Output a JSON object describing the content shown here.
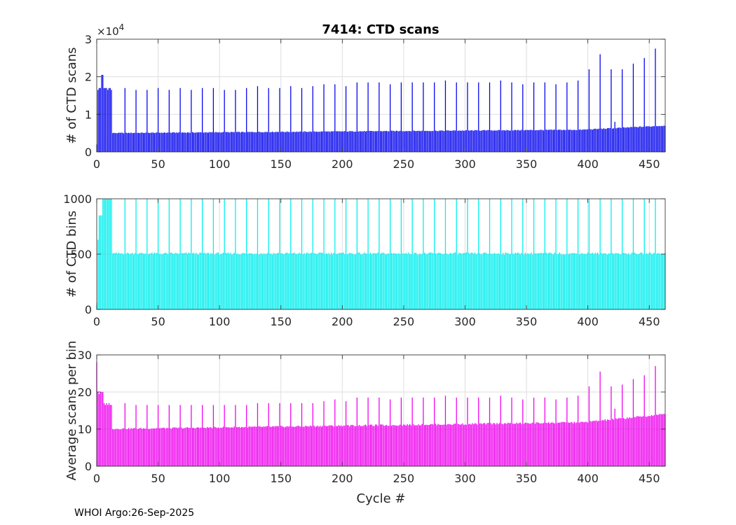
{
  "footer": "WHOI Argo:26-Sep-2025",
  "colors": {
    "scans": "#0000ee",
    "bins": "#00eeee",
    "average": "#ee00ee",
    "axis": "#262626",
    "grid": "#dedede"
  },
  "chart_data": [
    {
      "type": "bar",
      "title": "7414: CTD scans",
      "xlabel": "",
      "ylabel": "# of CTD scans",
      "scale_label": "×10",
      "scale_exponent": "4",
      "xlim": [
        0,
        463
      ],
      "ylim": [
        0,
        30000
      ],
      "xticks": [
        0,
        50,
        100,
        150,
        200,
        250,
        300,
        350,
        400,
        450
      ],
      "yticks": [
        0,
        10000,
        20000,
        30000
      ],
      "ytick_labels": [
        "0",
        "1",
        "2",
        "3"
      ],
      "grid": true,
      "x_range": [
        0,
        463
      ],
      "baseline": {
        "start": 5000,
        "end": 7000,
        "bend_at": 395
      },
      "early_values": [
        {
          "x": 0,
          "value": 2000
        },
        {
          "x": 1,
          "value": 16500
        },
        {
          "x": 2,
          "value": 17000
        },
        {
          "x": 3,
          "value": 17000
        },
        {
          "x": 4,
          "value": 20500
        },
        {
          "x": 5,
          "value": 20500
        },
        {
          "x": 6,
          "value": 17000
        },
        {
          "x": 7,
          "value": 17000
        },
        {
          "x": 8,
          "value": 17000
        },
        {
          "x": 9,
          "value": 16500
        },
        {
          "x": 10,
          "value": 17000
        },
        {
          "x": 11,
          "value": 17000
        },
        {
          "x": 12,
          "value": 16500
        },
        {
          "x": 13,
          "value": 5000
        }
      ],
      "spikes": [
        {
          "x": 23,
          "value": 17000
        },
        {
          "x": 32,
          "value": 16500
        },
        {
          "x": 41,
          "value": 16500
        },
        {
          "x": 50,
          "value": 17000
        },
        {
          "x": 59,
          "value": 16500
        },
        {
          "x": 68,
          "value": 17000
        },
        {
          "x": 77,
          "value": 16500
        },
        {
          "x": 86,
          "value": 17000
        },
        {
          "x": 95,
          "value": 17000
        },
        {
          "x": 104,
          "value": 16500
        },
        {
          "x": 113,
          "value": 16500
        },
        {
          "x": 122,
          "value": 17000
        },
        {
          "x": 131,
          "value": 17500
        },
        {
          "x": 140,
          "value": 17000
        },
        {
          "x": 149,
          "value": 17000
        },
        {
          "x": 158,
          "value": 17500
        },
        {
          "x": 167,
          "value": 17000
        },
        {
          "x": 176,
          "value": 17500
        },
        {
          "x": 185,
          "value": 18000
        },
        {
          "x": 194,
          "value": 18000
        },
        {
          "x": 203,
          "value": 17500
        },
        {
          "x": 212,
          "value": 18500
        },
        {
          "x": 221,
          "value": 18500
        },
        {
          "x": 230,
          "value": 18500
        },
        {
          "x": 239,
          "value": 18000
        },
        {
          "x": 248,
          "value": 18500
        },
        {
          "x": 257,
          "value": 18500
        },
        {
          "x": 266,
          "value": 18500
        },
        {
          "x": 275,
          "value": 18500
        },
        {
          "x": 284,
          "value": 19000
        },
        {
          "x": 293,
          "value": 18500
        },
        {
          "x": 302,
          "value": 18500
        },
        {
          "x": 311,
          "value": 18500
        },
        {
          "x": 320,
          "value": 18500
        },
        {
          "x": 329,
          "value": 19000
        },
        {
          "x": 338,
          "value": 18500
        },
        {
          "x": 347,
          "value": 18000
        },
        {
          "x": 356,
          "value": 18500
        },
        {
          "x": 365,
          "value": 18500
        },
        {
          "x": 374,
          "value": 18000
        },
        {
          "x": 383,
          "value": 18500
        },
        {
          "x": 392,
          "value": 19000
        },
        {
          "x": 401,
          "value": 22000
        },
        {
          "x": 410,
          "value": 26000
        },
        {
          "x": 419,
          "value": 22000
        },
        {
          "x": 422,
          "value": 8000
        },
        {
          "x": 428,
          "value": 22000
        },
        {
          "x": 437,
          "value": 23500
        },
        {
          "x": 446,
          "value": 25000
        },
        {
          "x": 455,
          "value": 27500
        }
      ]
    },
    {
      "type": "bar",
      "title": "",
      "xlabel": "",
      "ylabel": "# of CTD bins",
      "xlim": [
        0,
        463
      ],
      "ylim": [
        0,
        1000
      ],
      "xticks": [
        0,
        50,
        100,
        150,
        200,
        250,
        300,
        350,
        400,
        450
      ],
      "yticks": [
        0,
        500,
        1000
      ],
      "ytick_labels": [
        "0",
        "500",
        "1000"
      ],
      "grid": true,
      "x_range": [
        0,
        463
      ],
      "baseline": {
        "start": 505,
        "end": 505,
        "bend_at": 463
      },
      "early_values": [
        {
          "x": 0,
          "value": 60
        },
        {
          "x": 1,
          "value": 630
        },
        {
          "x": 2,
          "value": 850
        },
        {
          "x": 3,
          "value": 850
        },
        {
          "x": 4,
          "value": 850
        },
        {
          "x": 5,
          "value": 1000
        },
        {
          "x": 6,
          "value": 1000
        },
        {
          "x": 7,
          "value": 1000
        },
        {
          "x": 8,
          "value": 1000
        },
        {
          "x": 9,
          "value": 1000
        },
        {
          "x": 10,
          "value": 1000
        },
        {
          "x": 11,
          "value": 1000
        },
        {
          "x": 12,
          "value": 1000
        },
        {
          "x": 13,
          "value": 505
        }
      ],
      "spikes": [
        {
          "x": 23,
          "value": 1000
        },
        {
          "x": 32,
          "value": 1000
        },
        {
          "x": 41,
          "value": 1000
        },
        {
          "x": 50,
          "value": 1000
        },
        {
          "x": 59,
          "value": 1000
        },
        {
          "x": 68,
          "value": 1000
        },
        {
          "x": 77,
          "value": 1000
        },
        {
          "x": 86,
          "value": 1000
        },
        {
          "x": 95,
          "value": 1000
        },
        {
          "x": 104,
          "value": 1000
        },
        {
          "x": 113,
          "value": 1000
        },
        {
          "x": 122,
          "value": 1000
        },
        {
          "x": 131,
          "value": 1000
        },
        {
          "x": 140,
          "value": 1000
        },
        {
          "x": 149,
          "value": 1000
        },
        {
          "x": 158,
          "value": 1000
        },
        {
          "x": 167,
          "value": 1000
        },
        {
          "x": 176,
          "value": 1000
        },
        {
          "x": 185,
          "value": 1000
        },
        {
          "x": 194,
          "value": 1000
        },
        {
          "x": 203,
          "value": 1000
        },
        {
          "x": 212,
          "value": 1000
        },
        {
          "x": 221,
          "value": 1000
        },
        {
          "x": 230,
          "value": 1000
        },
        {
          "x": 239,
          "value": 1000
        },
        {
          "x": 248,
          "value": 1000
        },
        {
          "x": 257,
          "value": 1000
        },
        {
          "x": 266,
          "value": 1000
        },
        {
          "x": 275,
          "value": 1000
        },
        {
          "x": 284,
          "value": 1000
        },
        {
          "x": 293,
          "value": 1000
        },
        {
          "x": 302,
          "value": 1000
        },
        {
          "x": 311,
          "value": 1000
        },
        {
          "x": 320,
          "value": 1000
        },
        {
          "x": 329,
          "value": 1000
        },
        {
          "x": 338,
          "value": 1000
        },
        {
          "x": 347,
          "value": 1000
        },
        {
          "x": 356,
          "value": 1000
        },
        {
          "x": 365,
          "value": 1000
        },
        {
          "x": 374,
          "value": 1000
        },
        {
          "x": 383,
          "value": 1000
        },
        {
          "x": 392,
          "value": 1000
        },
        {
          "x": 401,
          "value": 1000
        },
        {
          "x": 410,
          "value": 1000
        },
        {
          "x": 419,
          "value": 1000
        },
        {
          "x": 428,
          "value": 1000
        },
        {
          "x": 437,
          "value": 1000
        },
        {
          "x": 446,
          "value": 1000
        },
        {
          "x": 455,
          "value": 1000
        }
      ]
    },
    {
      "type": "bar",
      "title": "",
      "xlabel": "Cycle #",
      "ylabel": "Average scans per bin",
      "xlim": [
        0,
        463
      ],
      "ylim": [
        0,
        30
      ],
      "xticks": [
        0,
        50,
        100,
        150,
        200,
        250,
        300,
        350,
        400,
        450
      ],
      "yticks": [
        0,
        10,
        20,
        30
      ],
      "ytick_labels": [
        "0",
        "10",
        "20",
        "30"
      ],
      "grid": true,
      "x_range": [
        0,
        463
      ],
      "baseline": {
        "start": 10,
        "end": 14,
        "bend_at": 395
      },
      "early_values": [
        {
          "x": 0,
          "value": 28
        },
        {
          "x": 1,
          "value": 20
        },
        {
          "x": 2,
          "value": 19.5
        },
        {
          "x": 3,
          "value": 20
        },
        {
          "x": 4,
          "value": 20
        },
        {
          "x": 5,
          "value": 20
        },
        {
          "x": 6,
          "value": 17
        },
        {
          "x": 7,
          "value": 16.5
        },
        {
          "x": 8,
          "value": 17
        },
        {
          "x": 9,
          "value": 16.5
        },
        {
          "x": 10,
          "value": 17
        },
        {
          "x": 11,
          "value": 16.5
        },
        {
          "x": 12,
          "value": 16.5
        },
        {
          "x": 13,
          "value": 10
        }
      ],
      "spikes": [
        {
          "x": 23,
          "value": 17
        },
        {
          "x": 32,
          "value": 16.5
        },
        {
          "x": 41,
          "value": 16.5
        },
        {
          "x": 50,
          "value": 16.5
        },
        {
          "x": 59,
          "value": 16.5
        },
        {
          "x": 68,
          "value": 16.5
        },
        {
          "x": 77,
          "value": 16.5
        },
        {
          "x": 86,
          "value": 16.5
        },
        {
          "x": 95,
          "value": 16.5
        },
        {
          "x": 104,
          "value": 16.5
        },
        {
          "x": 113,
          "value": 16.5
        },
        {
          "x": 122,
          "value": 16.5
        },
        {
          "x": 131,
          "value": 17
        },
        {
          "x": 140,
          "value": 17
        },
        {
          "x": 149,
          "value": 17
        },
        {
          "x": 158,
          "value": 17
        },
        {
          "x": 167,
          "value": 17
        },
        {
          "x": 176,
          "value": 17
        },
        {
          "x": 185,
          "value": 17.5
        },
        {
          "x": 194,
          "value": 18
        },
        {
          "x": 203,
          "value": 17.5
        },
        {
          "x": 212,
          "value": 18.5
        },
        {
          "x": 221,
          "value": 18.5
        },
        {
          "x": 230,
          "value": 18.5
        },
        {
          "x": 239,
          "value": 18
        },
        {
          "x": 248,
          "value": 18.5
        },
        {
          "x": 257,
          "value": 18.5
        },
        {
          "x": 266,
          "value": 18.5
        },
        {
          "x": 275,
          "value": 18.5
        },
        {
          "x": 284,
          "value": 19
        },
        {
          "x": 293,
          "value": 18.5
        },
        {
          "x": 302,
          "value": 18.5
        },
        {
          "x": 311,
          "value": 18.5
        },
        {
          "x": 320,
          "value": 18.5
        },
        {
          "x": 329,
          "value": 19
        },
        {
          "x": 338,
          "value": 18.5
        },
        {
          "x": 347,
          "value": 18
        },
        {
          "x": 356,
          "value": 18.5
        },
        {
          "x": 365,
          "value": 18.5
        },
        {
          "x": 374,
          "value": 18
        },
        {
          "x": 383,
          "value": 18.5
        },
        {
          "x": 392,
          "value": 19
        },
        {
          "x": 401,
          "value": 21.5
        },
        {
          "x": 410,
          "value": 25.5
        },
        {
          "x": 419,
          "value": 21.5
        },
        {
          "x": 422,
          "value": 15.5
        },
        {
          "x": 428,
          "value": 22
        },
        {
          "x": 437,
          "value": 23.5
        },
        {
          "x": 446,
          "value": 24.5
        },
        {
          "x": 455,
          "value": 27
        }
      ]
    }
  ]
}
